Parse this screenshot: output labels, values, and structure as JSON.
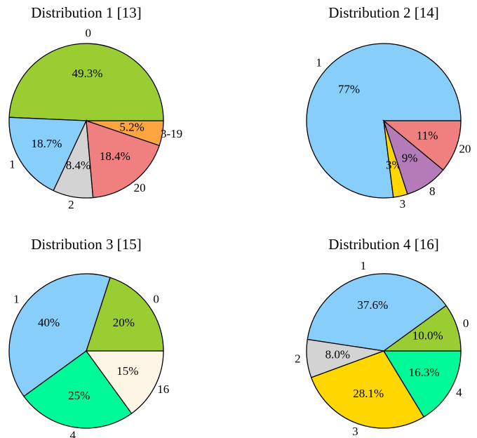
{
  "chart_data": [
    {
      "type": "pie",
      "title": "Distribution 1 [13]",
      "categories": [
        "0",
        "1",
        "2",
        "20",
        "3-19"
      ],
      "values": [
        49.3,
        18.7,
        8.4,
        18.4,
        5.2
      ],
      "value_labels": [
        "49.3%",
        "18.7%",
        "8.4%",
        "18.4%",
        "5.2%"
      ],
      "colors": [
        "#9acd32",
        "#87cefa",
        "#d3d3d3",
        "#f08080",
        "#ffa540"
      ]
    },
    {
      "type": "pie",
      "title": "Distribution 2 [14]",
      "categories": [
        "1",
        "3",
        "8",
        "20"
      ],
      "values": [
        77,
        3,
        9,
        11
      ],
      "value_labels": [
        "77%",
        "3%",
        "9%",
        "11%"
      ],
      "colors": [
        "#87cefa",
        "#ffd700",
        "#b57ab8",
        "#f08080"
      ]
    },
    {
      "type": "pie",
      "title": "Distribution 3 [15]",
      "categories": [
        "0",
        "1",
        "4",
        "16"
      ],
      "values": [
        20,
        40,
        25,
        15
      ],
      "value_labels": [
        "20%",
        "40%",
        "25%",
        "15%"
      ],
      "colors": [
        "#9acd32",
        "#87cefa",
        "#00fa9a",
        "#fdf5e6"
      ]
    },
    {
      "type": "pie",
      "title": "Distribution 4 [16]",
      "categories": [
        "0",
        "1",
        "2",
        "3",
        "4"
      ],
      "values": [
        10.0,
        37.6,
        8.0,
        28.1,
        16.3
      ],
      "value_labels": [
        "10.0%",
        "37.6%",
        "8.0%",
        "28.1%",
        "16.3%"
      ],
      "colors": [
        "#9acd32",
        "#87cefa",
        "#d3d3d3",
        "#ffd700",
        "#00fa9a"
      ]
    }
  ]
}
